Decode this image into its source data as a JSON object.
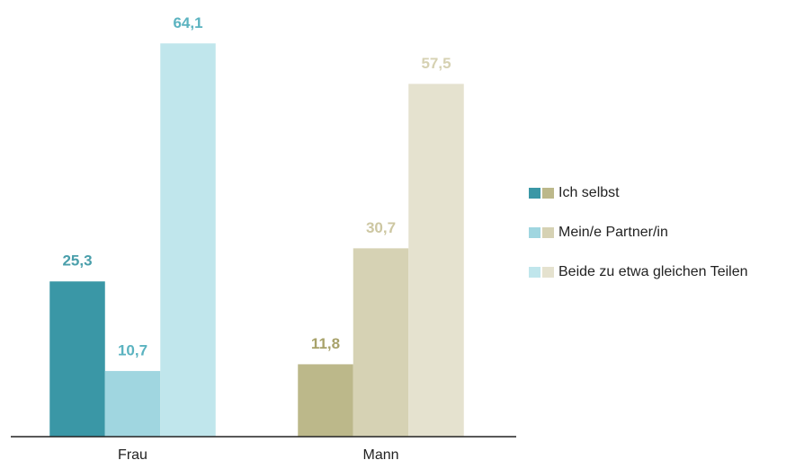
{
  "chart_data": {
    "type": "bar",
    "categories": [
      "Frau",
      "Mann"
    ],
    "series": [
      {
        "name": "Ich selbst",
        "colors": [
          "#3a97a6",
          "#bcb88a"
        ],
        "label_colors": [
          "#4a9fab",
          "#a8a26a"
        ],
        "values": [
          25.3,
          11.8
        ],
        "value_labels": [
          "25,3",
          "11,8"
        ]
      },
      {
        "name": "Mein/e Partner/in",
        "colors": [
          "#a0d6e0",
          "#d6d2b4"
        ],
        "label_colors": [
          "#5bb3c0",
          "#cdc7a2"
        ],
        "values": [
          10.7,
          30.7
        ],
        "value_labels": [
          "10,7",
          "30,7"
        ]
      },
      {
        "name": "Beide zu etwa gleichen Teilen",
        "colors": [
          "#c0e6ec",
          "#e5e2cf"
        ],
        "label_colors": [
          "#5bb3c0",
          "#d6d1b2"
        ],
        "values": [
          64.1,
          57.5
        ],
        "value_labels": [
          "64,1",
          "57,5"
        ]
      }
    ],
    "ylim": [
      0,
      70
    ],
    "legend": "right"
  }
}
